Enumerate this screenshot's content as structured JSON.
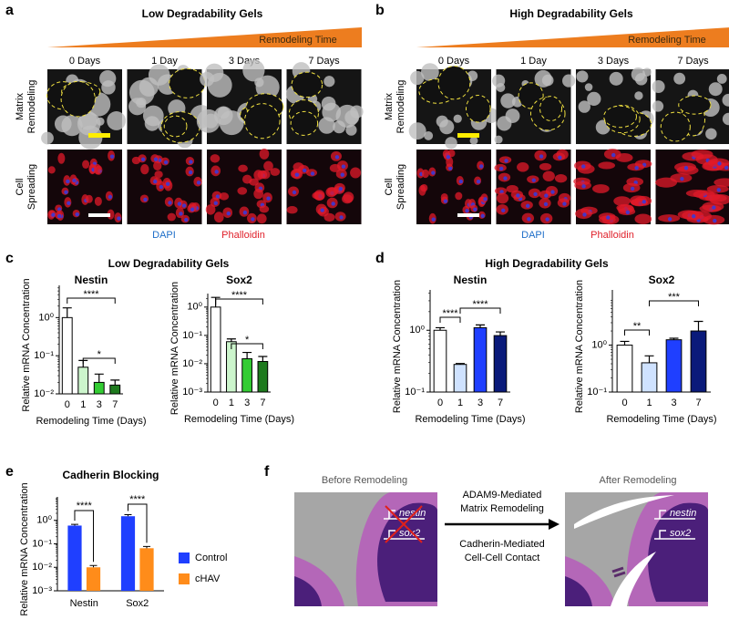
{
  "panels": {
    "a": {
      "label": "a",
      "title": "Low Degradability Gels",
      "gradient": "Remodeling Time",
      "days": [
        "0 Days",
        "1 Day",
        "3 Days",
        "7 Days"
      ],
      "rows": [
        [
          "Matrix",
          "Remodeling"
        ],
        [
          "Cell",
          "Spreading"
        ]
      ],
      "stains": [
        "DAPI",
        "Phalloidin"
      ]
    },
    "b": {
      "label": "b",
      "title": "High Degradability Gels",
      "gradient": "Remodeling Time",
      "days": [
        "0 Days",
        "1 Day",
        "3 Days",
        "7 Days"
      ],
      "rows": [
        [
          "Matrix",
          "Remodeling"
        ],
        [
          "Cell",
          "Spreading"
        ]
      ],
      "stains": [
        "DAPI",
        "Phalloidin"
      ]
    },
    "c": {
      "label": "c",
      "title": "Low Degradability Gels"
    },
    "d": {
      "label": "d",
      "title": "High Degradability Gels"
    },
    "e": {
      "label": "e"
    },
    "f": {
      "label": "f",
      "before": "Before Remodeling",
      "after": "After Remodeling",
      "arrow_top": [
        "ADAM9-Mediated",
        "Matrix Remodeling"
      ],
      "arrow_bottom": [
        "Cadherin-Mediated",
        "Cell-Cell Contact"
      ],
      "genes_before": [
        "nestin",
        "sox2"
      ],
      "genes_after": [
        "nestin",
        "sox2"
      ]
    }
  },
  "chart_data": [
    {
      "type": "bar",
      "title": "Nestin",
      "x_label": "Remodeling Time (Days)",
      "y_label": "Relative mRNA Concentration",
      "categories": [
        "0",
        "1",
        "3",
        "7"
      ],
      "values": [
        1,
        0.05,
        0.02,
        0.017
      ],
      "errors": [
        0.8,
        0.025,
        0.013,
        0.006
      ],
      "colors": [
        "#ffffff",
        "#ccf5cc",
        "#33cc33",
        "#1e7a1e"
      ],
      "log_scale": true,
      "ylim": [
        0.01,
        7
      ],
      "yticks": [
        {
          "value": 0.01,
          "label": "10⁻²"
        },
        {
          "value": 0.1,
          "label": "10⁻¹"
        },
        {
          "value": 1,
          "label": "10⁰"
        }
      ],
      "annotations": [
        "****",
        "*"
      ]
    },
    {
      "type": "bar",
      "title": "Sox2",
      "x_label": "Remodeling Time (Days)",
      "y_label": "Relative mRNA Concentration",
      "categories": [
        "0",
        "1",
        "3",
        "7"
      ],
      "values": [
        1,
        0.06,
        0.015,
        0.012
      ],
      "errors": [
        1.2,
        0.015,
        0.01,
        0.006
      ],
      "colors": [
        "#ffffff",
        "#ccf5cc",
        "#33cc33",
        "#1e7a1e"
      ],
      "log_scale": true,
      "ylim": [
        0.001,
        3
      ],
      "yticks": [
        {
          "value": 0.001,
          "label": "10⁻³"
        },
        {
          "value": 0.01,
          "label": "10⁻²"
        },
        {
          "value": 0.1,
          "label": "10⁻¹"
        },
        {
          "value": 1,
          "label": "10⁰"
        }
      ],
      "annotations": [
        "****",
        "*"
      ]
    },
    {
      "type": "bar",
      "title": "Nestin",
      "x_label": "Remodeling Time (Days)",
      "y_label": "Relative mRNA Concentration",
      "categories": [
        "0",
        "1",
        "3",
        "7"
      ],
      "values": [
        1,
        0.28,
        1.1,
        0.82
      ],
      "errors": [
        0.1,
        0.01,
        0.12,
        0.12
      ],
      "colors": [
        "#ffffff",
        "#cfe2ff",
        "#1f3fff",
        "#0a1a7a"
      ],
      "log_scale": true,
      "ylim": [
        0.1,
        4.5
      ],
      "yticks": [
        {
          "value": 0.1,
          "label": "10⁻¹"
        },
        {
          "value": 1,
          "label": "10⁰"
        }
      ],
      "annotations": [
        "****",
        "****"
      ]
    },
    {
      "type": "bar",
      "title": "Sox2",
      "x_label": "Remodeling Time (Days)",
      "y_label": "Relative mRNA Concentration",
      "categories": [
        "0",
        "1",
        "3",
        "7"
      ],
      "values": [
        1,
        0.42,
        1.3,
        2
      ],
      "errors": [
        0.2,
        0.17,
        0.1,
        1.2
      ],
      "colors": [
        "#ffffff",
        "#cfe2ff",
        "#1f3fff",
        "#0a1a7a"
      ],
      "log_scale": true,
      "ylim": [
        0.1,
        15
      ],
      "yticks": [
        {
          "value": 0.1,
          "label": "10⁻¹"
        },
        {
          "value": 1,
          "label": "10⁰"
        }
      ],
      "annotations": [
        "**",
        "***"
      ]
    },
    {
      "type": "grouped_bar",
      "title": "Cadherin Blocking",
      "y_label": "Relative mRNA Concentration",
      "categories": [
        "Nestin",
        "Sox2"
      ],
      "series": [
        {
          "name": "Control",
          "color": "#1f3fff",
          "values": [
            0.6,
            1.5
          ],
          "errors": [
            0.08,
            0.25
          ]
        },
        {
          "name": "cHAV",
          "color": "#ff8c1a",
          "values": [
            0.01,
            0.065
          ],
          "errors": [
            0.002,
            0.012
          ]
        }
      ],
      "log_scale": true,
      "ylim": [
        0.001,
        10
      ],
      "yticks": [
        {
          "value": 0.001,
          "label": "10⁻³"
        },
        {
          "value": 0.01,
          "label": "10⁻²"
        },
        {
          "value": 0.1,
          "label": "10⁻¹"
        },
        {
          "value": 1,
          "label": "10⁰"
        }
      ],
      "annotations": [
        "****",
        "****"
      ],
      "legend": "right"
    }
  ]
}
